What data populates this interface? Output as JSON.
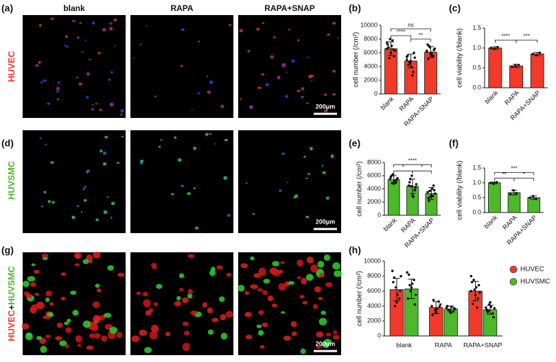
{
  "panel_labels": [
    "(a)",
    "(b)",
    "(c)",
    "(d)",
    "(e)",
    "(f)",
    "(g)",
    "(h)"
  ],
  "columns": [
    "blank",
    "RAPA",
    "RAPA+SNAP"
  ],
  "rows": [
    [
      "HUVEC"
    ],
    [
      "HUVSMC"
    ],
    [
      "HUVEC",
      "+",
      "HUVSMC"
    ]
  ],
  "scale_bar": "200μm",
  "chart_data": [
    {
      "type": "bar",
      "ylabel": "cell number (/cm²)",
      "categories": [
        "blank",
        "RAPA",
        "RAPA+SNAP"
      ],
      "ylim": [
        0,
        10000
      ],
      "yticks": [
        0,
        2000,
        4000,
        6000,
        8000,
        10000
      ],
      "series": [
        {
          "color": "#f23a2a",
          "values": [
            6600,
            4800,
            6100
          ],
          "errors": [
            1000,
            1000,
            800
          ],
          "points": [
            [
              7500,
              8000,
              6500,
              7200,
              6000,
              5500,
              6800,
              7000,
              6300,
              5200,
              7800,
              6600
            ],
            [
              5000,
              4500,
              3200,
              5600,
              4800,
              6000,
              4200,
              3900,
              5300,
              4700,
              2700,
              5400
            ],
            [
              6200,
              6800,
              5500,
              7200,
              5800,
              6400,
              5100,
              6000,
              6600,
              7000,
              5600,
              6300
            ]
          ]
        }
      ],
      "annotations": [
        "ns",
        "****",
        "**"
      ]
    },
    {
      "type": "bar",
      "ylabel": "cell viability (/blank)",
      "categories": [
        "blank",
        "RAPA",
        "RAPA+SNAP"
      ],
      "ylim": [
        0,
        1.5
      ],
      "yticks": [
        {
          "value": 0,
          "label": "0.0"
        },
        {
          "value": 0.5,
          "label": "0.5"
        },
        {
          "value": 1,
          "label": "1.0"
        },
        {
          "value": 1.5,
          "label": "1.5"
        }
      ],
      "series": [
        {
          "color": "#f23a2a",
          "values": [
            1.0,
            0.55,
            0.85
          ],
          "errors": [
            0.03,
            0.04,
            0.04
          ],
          "points": [
            [
              1.0,
              0.98,
              1.02
            ],
            [
              0.53,
              0.56,
              0.57
            ],
            [
              0.85,
              0.82,
              0.88
            ]
          ]
        }
      ],
      "annotations": [
        "****",
        "***"
      ]
    },
    {
      "type": "bar",
      "ylabel": "cell number (/cm²)",
      "categories": [
        "blank",
        "RAPA",
        "RAPA+SNAP"
      ],
      "ylim": [
        0,
        8000
      ],
      "yticks": [
        0,
        2000,
        4000,
        6000,
        8000
      ],
      "series": [
        {
          "color": "#4cb82a",
          "values": [
            5400,
            4400,
            3300
          ],
          "errors": [
            600,
            1100,
            900
          ],
          "points": [
            [
              5500,
              6200,
              5000,
              5800,
              4800,
              5400,
              6000,
              5200,
              5600,
              4900
            ],
            [
              4500,
              6000,
              3800,
              5000,
              3000,
              4200,
              5500,
              2800,
              4700,
              4400
            ],
            [
              3500,
              2800,
              4500,
              2600,
              3000,
              3800,
              2200,
              4000,
              3300,
              3700,
              2900
            ]
          ]
        }
      ],
      "annotations": [
        "****",
        "*",
        "*"
      ]
    },
    {
      "type": "bar",
      "ylabel": "cell viability (/blank)",
      "categories": [
        "blank",
        "RAPA",
        "RAPA+SNAP"
      ],
      "ylim": [
        0,
        1.5
      ],
      "yticks": [
        {
          "value": 0,
          "label": "0.0"
        },
        {
          "value": 0.5,
          "label": "0.5"
        },
        {
          "value": 1,
          "label": "1.0"
        },
        {
          "value": 1.5,
          "label": "1.5"
        }
      ],
      "series": [
        {
          "color": "#4cb82a",
          "values": [
            1.0,
            0.67,
            0.5
          ],
          "errors": [
            0.03,
            0.08,
            0.06
          ],
          "points": [
            [
              1.0,
              0.97,
              1.02
            ],
            [
              0.62,
              0.75,
              0.65
            ],
            [
              0.5,
              0.55,
              0.46
            ]
          ]
        }
      ],
      "annotations": [
        "***",
        "**",
        "*"
      ]
    },
    {
      "type": "bar",
      "ylabel": "cell number (/cm²)",
      "categories": [
        "blank",
        "RAPA",
        "RAPA+SNAP"
      ],
      "ylim": [
        0,
        10000
      ],
      "yticks": [
        0,
        2000,
        4000,
        6000,
        8000,
        10000
      ],
      "legend": "top-right",
      "series": [
        {
          "name": "HUVEC",
          "color": "#f23a2a",
          "values": [
            6200,
            3800,
            6000
          ],
          "errors": [
            1500,
            800,
            1300
          ],
          "points": [
            [
              8700,
              6500,
              5000,
              7200,
              4500,
              6000,
              7800,
              5500,
              8000,
              4000
            ],
            [
              4000,
              3500,
              4600,
              2800,
              3200,
              3900,
              4800,
              3600,
              4200
            ],
            [
              8000,
              6200,
              5000,
              7200,
              5500,
              6800,
              4300,
              6500,
              5800,
              7500,
              3800,
              6000
            ]
          ]
        },
        {
          "name": "HUVSMC",
          "color": "#4cb82a",
          "values": [
            6300,
            3600,
            3500
          ],
          "errors": [
            1300,
            400,
            600
          ],
          "points": [
            [
              8500,
              6000,
              7500,
              5000,
              6500,
              4200,
              8200,
              7000,
              5500,
              6800
            ],
            [
              3800,
              3400,
              3300,
              4000,
              3100,
              3700,
              3500,
              3900,
              3600
            ],
            [
              3800,
              4200,
              3000,
              3500,
              4500,
              2500,
              3200,
              3900,
              3700,
              3400
            ]
          ]
        }
      ],
      "annotations": []
    }
  ]
}
